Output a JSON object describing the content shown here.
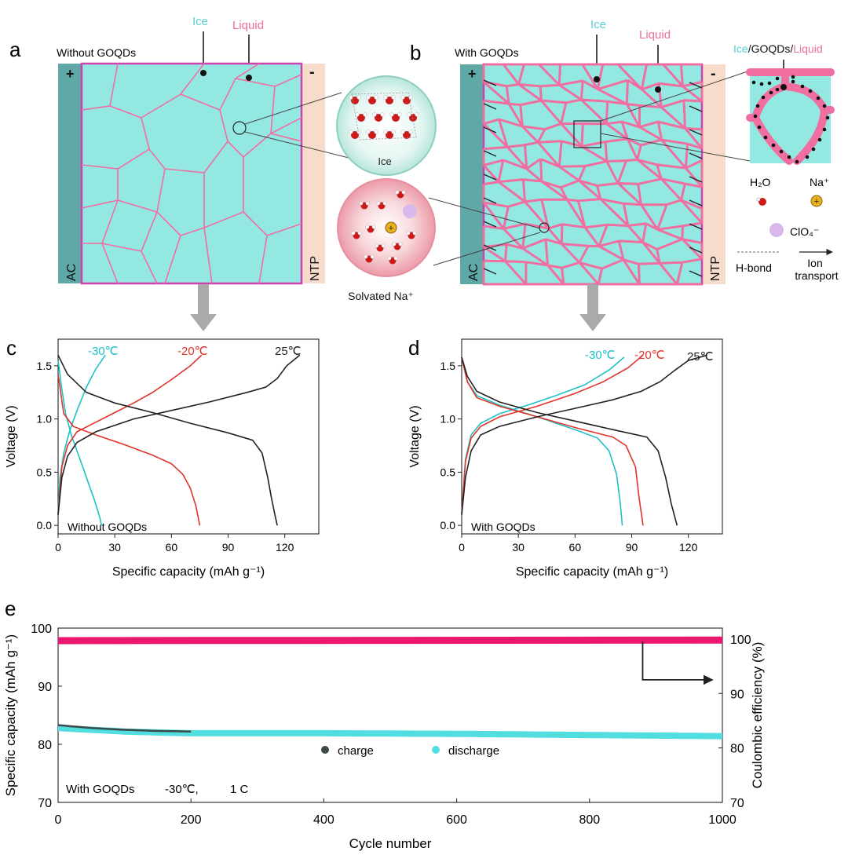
{
  "panel_letters": {
    "a": "a",
    "b": "b",
    "c": "c",
    "d": "d",
    "e": "e"
  },
  "panel_a": {
    "title": "Without GOQDs",
    "ice_label": "Ice",
    "liquid_label": "Liquid",
    "left_electrode": "AC",
    "right_electrode": "NTP",
    "plus": "+",
    "minus": "-"
  },
  "middle": {
    "ice_caption": "Ice",
    "solvated_caption": "Solvated Na⁺"
  },
  "panel_b": {
    "title": "With GOQDs",
    "ice_label": "Ice",
    "liquid_label": "Liquid",
    "left_electrode": "AC",
    "right_electrode": "NTP",
    "plus": "+",
    "minus": "-",
    "zoom_title": {
      "ice": "Ice",
      "sep1": "/",
      "goqds": "GOQDs",
      "sep2": "/",
      "liquid": "Liquid"
    }
  },
  "legend": {
    "h2o": "H₂O",
    "na": "Na⁺",
    "clo4": "ClO₄⁻",
    "hbond": "H-bond",
    "ion_line1": "Ion",
    "ion_line2": "transport"
  },
  "colors": {
    "ice": "#94e8e2",
    "liquid": "#f06ea0",
    "electrode_left": "#5fa8a6",
    "electrode_right": "#f8dccb",
    "frame": "#d040b0",
    "cyan_series": "#1ec0c8",
    "red_series": "#e0342a",
    "black_series": "#222222",
    "ce_series": "#ec1870",
    "arrow_gray": "#aaaaaa"
  },
  "chart_data": [
    {
      "panel": "c",
      "type": "line",
      "annotation": "Without GOQDs",
      "xlabel": "Specific capacity (mAh g⁻¹)",
      "ylabel": "Voltage (V)",
      "xlim": [
        0,
        138
      ],
      "ylim": [
        -0.08,
        1.75
      ],
      "xticks": [
        0,
        30,
        60,
        90,
        120
      ],
      "yticks": [
        0.0,
        0.5,
        1.0,
        1.5
      ],
      "series": [
        {
          "name": "-30℃",
          "color": "#1ec0c8",
          "charge": [
            [
              0,
              0.1
            ],
            [
              1,
              0.45
            ],
            [
              3,
              0.68
            ],
            [
              6,
              0.88
            ],
            [
              10,
              1.08
            ],
            [
              15,
              1.3
            ],
            [
              20,
              1.47
            ],
            [
              25,
              1.6
            ]
          ],
          "discharge": [
            [
              0,
              1.55
            ],
            [
              2,
              1.28
            ],
            [
              4,
              1.05
            ],
            [
              7,
              0.85
            ],
            [
              11,
              0.65
            ],
            [
              15,
              0.45
            ],
            [
              19,
              0.25
            ],
            [
              22,
              0.08
            ],
            [
              23,
              0.0
            ]
          ]
        },
        {
          "name": "-20℃",
          "color": "#e0342a",
          "charge": [
            [
              0,
              0.1
            ],
            [
              2,
              0.55
            ],
            [
              5,
              0.75
            ],
            [
              10,
              0.88
            ],
            [
              20,
              0.97
            ],
            [
              30,
              1.06
            ],
            [
              40,
              1.15
            ],
            [
              50,
              1.25
            ],
            [
              60,
              1.37
            ],
            [
              70,
              1.5
            ],
            [
              76,
              1.6
            ]
          ],
          "discharge": [
            [
              0,
              1.42
            ],
            [
              3,
              1.05
            ],
            [
              8,
              0.93
            ],
            [
              20,
              0.85
            ],
            [
              35,
              0.76
            ],
            [
              50,
              0.66
            ],
            [
              60,
              0.58
            ],
            [
              66,
              0.48
            ],
            [
              70,
              0.35
            ],
            [
              73,
              0.18
            ],
            [
              75,
              0.0
            ]
          ]
        },
        {
          "name": "25℃",
          "color": "#222222",
          "charge": [
            [
              0,
              0.1
            ],
            [
              2,
              0.45
            ],
            [
              5,
              0.65
            ],
            [
              10,
              0.78
            ],
            [
              20,
              0.88
            ],
            [
              40,
              1.0
            ],
            [
              60,
              1.08
            ],
            [
              80,
              1.16
            ],
            [
              100,
              1.25
            ],
            [
              110,
              1.3
            ],
            [
              116,
              1.38
            ],
            [
              121,
              1.5
            ],
            [
              128,
              1.6
            ]
          ],
          "discharge": [
            [
              0,
              1.6
            ],
            [
              5,
              1.42
            ],
            [
              15,
              1.25
            ],
            [
              30,
              1.15
            ],
            [
              50,
              1.06
            ],
            [
              70,
              0.96
            ],
            [
              90,
              0.87
            ],
            [
              103,
              0.8
            ],
            [
              108,
              0.68
            ],
            [
              111,
              0.45
            ],
            [
              113,
              0.25
            ],
            [
              115,
              0.08
            ],
            [
              116,
              0.0
            ]
          ]
        }
      ]
    },
    {
      "panel": "d",
      "type": "line",
      "annotation": "With GOQDs",
      "xlabel": "Specific capacity (mAh g⁻¹)",
      "ylabel": "Voltage (V)",
      "xlim": [
        0,
        138
      ],
      "ylim": [
        -0.08,
        1.75
      ],
      "xticks": [
        0,
        30,
        60,
        90,
        120
      ],
      "yticks": [
        0.0,
        0.5,
        1.0,
        1.5
      ],
      "series": [
        {
          "name": "-30℃",
          "color": "#1ec0c8",
          "charge": [
            [
              0,
              0.1
            ],
            [
              2,
              0.62
            ],
            [
              5,
              0.85
            ],
            [
              10,
              0.96
            ],
            [
              20,
              1.05
            ],
            [
              35,
              1.13
            ],
            [
              50,
              1.22
            ],
            [
              65,
              1.32
            ],
            [
              78,
              1.46
            ],
            [
              86,
              1.58
            ]
          ],
          "discharge": [
            [
              0,
              1.58
            ],
            [
              3,
              1.35
            ],
            [
              8,
              1.22
            ],
            [
              20,
              1.13
            ],
            [
              40,
              1.02
            ],
            [
              60,
              0.9
            ],
            [
              72,
              0.82
            ],
            [
              78,
              0.7
            ],
            [
              82,
              0.48
            ],
            [
              84,
              0.2
            ],
            [
              85,
              0.0
            ]
          ]
        },
        {
          "name": "-20℃",
          "color": "#e0342a",
          "charge": [
            [
              0,
              0.1
            ],
            [
              2,
              0.6
            ],
            [
              5,
              0.82
            ],
            [
              10,
              0.93
            ],
            [
              20,
              1.02
            ],
            [
              40,
              1.12
            ],
            [
              60,
              1.24
            ],
            [
              75,
              1.35
            ],
            [
              88,
              1.48
            ],
            [
              96,
              1.6
            ]
          ],
          "discharge": [
            [
              0,
              1.58
            ],
            [
              3,
              1.35
            ],
            [
              8,
              1.2
            ],
            [
              20,
              1.12
            ],
            [
              40,
              1.02
            ],
            [
              60,
              0.92
            ],
            [
              80,
              0.83
            ],
            [
              87,
              0.75
            ],
            [
              92,
              0.55
            ],
            [
              94,
              0.25
            ],
            [
              96,
              0.0
            ]
          ]
        },
        {
          "name": "25℃",
          "color": "#222222",
          "charge": [
            [
              0,
              0.1
            ],
            [
              2,
              0.45
            ],
            [
              5,
              0.7
            ],
            [
              10,
              0.85
            ],
            [
              20,
              0.93
            ],
            [
              40,
              1.02
            ],
            [
              60,
              1.1
            ],
            [
              80,
              1.18
            ],
            [
              95,
              1.26
            ],
            [
              105,
              1.35
            ],
            [
              113,
              1.46
            ],
            [
              120,
              1.55
            ],
            [
              130,
              1.6
            ]
          ],
          "discharge": [
            [
              0,
              1.58
            ],
            [
              3,
              1.4
            ],
            [
              8,
              1.26
            ],
            [
              20,
              1.16
            ],
            [
              40,
              1.06
            ],
            [
              60,
              0.98
            ],
            [
              80,
              0.9
            ],
            [
              98,
              0.83
            ],
            [
              104,
              0.7
            ],
            [
              108,
              0.45
            ],
            [
              111,
              0.2
            ],
            [
              114,
              0.0
            ]
          ]
        }
      ]
    },
    {
      "panel": "e",
      "type": "scatter",
      "annotation": {
        "a": "With GOQDs",
        "b": "-30℃,",
        "c": "1 C"
      },
      "xlabel": "Cycle number",
      "ylabel": "Specific capacity (mAh g⁻¹)",
      "y2label": "Coulombic efficiency (%)",
      "xlim": [
        0,
        1000
      ],
      "ylim": [
        70,
        100
      ],
      "y2lim": [
        70,
        102
      ],
      "xticks": [
        0,
        200,
        400,
        600,
        800,
        1000
      ],
      "yticks": [
        70,
        80,
        90,
        100
      ],
      "y2ticks": [
        70,
        80,
        90,
        100
      ],
      "legend": [
        {
          "name": "charge",
          "color": "#3a4a48"
        },
        {
          "name": "discharge",
          "color": "#52dde0"
        }
      ],
      "series": [
        {
          "name": "charge",
          "color": "#3a4a48",
          "x": [
            0,
            50,
            100,
            150,
            200
          ],
          "y": [
            83.3,
            82.8,
            82.5,
            82.3,
            82.2
          ]
        },
        {
          "name": "discharge",
          "color": "#52dde0",
          "x": [
            0,
            100,
            200,
            400,
            600,
            800,
            1000
          ],
          "y": [
            82.8,
            82.2,
            81.9,
            81.9,
            81.8,
            81.6,
            81.4
          ]
        },
        {
          "name": "Coulombic efficiency",
          "axis": "right",
          "color": "#ec1870",
          "x": [
            0,
            500,
            1000
          ],
          "y": [
            99.7,
            99.8,
            99.8
          ]
        }
      ]
    }
  ]
}
